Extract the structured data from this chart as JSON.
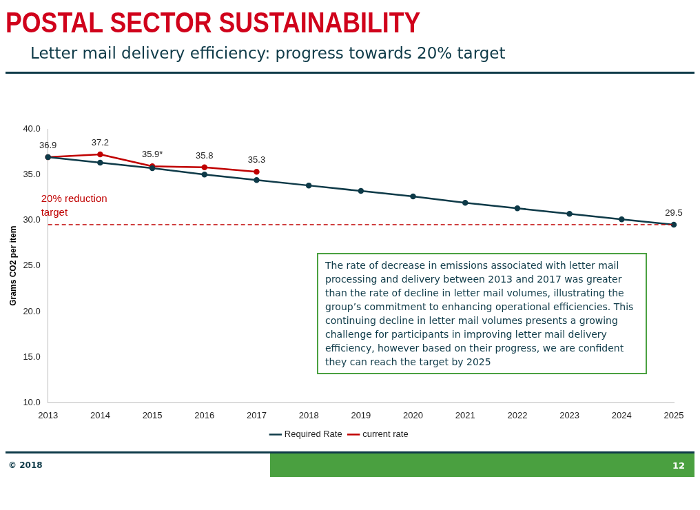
{
  "chart_data": {
    "type": "line",
    "title": "POSTAL SECTOR SUSTAINABILITY",
    "subtitle": "Letter mail delivery efficiency: progress towards 20% target",
    "ylabel": "Grams CO2 per item",
    "categories": [
      "2013",
      "2014",
      "2015",
      "2016",
      "2017",
      "2018",
      "2019",
      "2020",
      "2021",
      "2022",
      "2023",
      "2024",
      "2025"
    ],
    "series": [
      {
        "name": "Required Rate",
        "color": "#0e3a48",
        "values": [
          36.9,
          36.3,
          35.7,
          35.0,
          34.4,
          33.8,
          33.2,
          32.6,
          31.9,
          31.3,
          30.7,
          30.1,
          29.5
        ],
        "value_labels": [
          null,
          null,
          null,
          null,
          null,
          null,
          null,
          null,
          null,
          null,
          null,
          null,
          "29.5"
        ]
      },
      {
        "name": "current rate",
        "color": "#c00000",
        "values": [
          36.9,
          37.2,
          35.9,
          35.8,
          35.3,
          null,
          null,
          null,
          null,
          null,
          null,
          null,
          null
        ],
        "value_labels": [
          "36.9",
          "37.2",
          "35.9*",
          "35.8",
          "35.3",
          null,
          null,
          null,
          null,
          null,
          null,
          null,
          null
        ]
      }
    ],
    "ylim": [
      10,
      40
    ],
    "yticks": [
      {
        "value": 10,
        "label": "10.0"
      },
      {
        "value": 15,
        "label": "15.0"
      },
      {
        "value": 20,
        "label": "20.0"
      },
      {
        "value": 25,
        "label": "25.0"
      },
      {
        "value": 30,
        "label": "30.0"
      },
      {
        "value": 35,
        "label": "35.0"
      },
      {
        "value": 40,
        "label": "40.0"
      }
    ],
    "ref_lines": [
      {
        "axis": "y",
        "value": 29.5,
        "label": "20% reduction target",
        "color": "#c00000",
        "line_style": "dashed"
      }
    ],
    "annotations": [
      "The rate of decrease in emissions associated with letter mail processing and delivery between 2013 and 2017 was greater than the rate of decline in letter mail volumes, illustrating the group’s commitment to enhancing operational efficiencies. This continuing decline in letter mail volumes presents a growing challenge for participants in improving letter mail delivery efficiency, however based on their progress, we are confident they can reach the target by 2025",
      "© 2018",
      "12"
    ],
    "grid": false,
    "legend": "bottom",
    "marker": "circle",
    "line_style": "solid"
  }
}
